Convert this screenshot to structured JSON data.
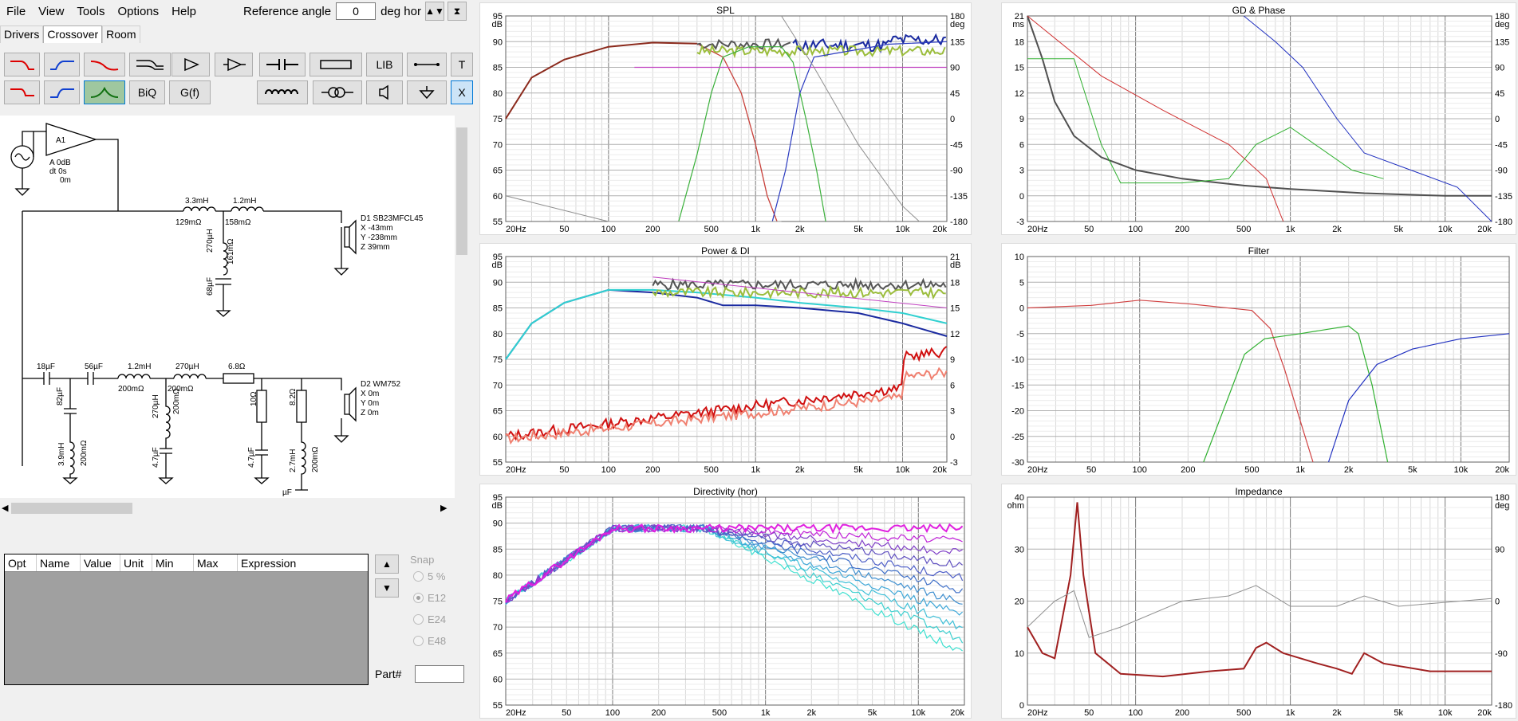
{
  "menu": {
    "items": [
      "File",
      "View",
      "Tools",
      "Options",
      "Help"
    ]
  },
  "toolbar_ref": {
    "label": "Reference angle",
    "value": "0",
    "unit": "deg hor"
  },
  "tabs": [
    "Drivers",
    "Crossover",
    "Room"
  ],
  "tools": {
    "lib": "LIB",
    "biq": "BiQ",
    "gf": "G(f)",
    "t": "T",
    "x": "X"
  },
  "schematic": {
    "amp": {
      "name": "A1",
      "gain": "A  0dB",
      "dt": "dt 0s",
      "dist": "0m"
    },
    "d1": {
      "name": "D1 SB23MFCL45",
      "x": "X -43mm",
      "y": "Y -238mm",
      "z": "Z 39mm"
    },
    "d2": {
      "name": "D2 WM752",
      "x": "X 0m",
      "y": "Y 0m",
      "z": "Z 0m"
    },
    "parts": [
      "3.3mH",
      "129mΩ",
      "1.2mH",
      "158mΩ",
      "270µH",
      "161mΩ",
      "68µF",
      "18µF",
      "56µF",
      "1.2mH",
      "200mΩ",
      "270µH",
      "200mΩ",
      "6.8Ω",
      "82µF",
      "3.9mH",
      "200mΩ",
      "270µH",
      "200mΩ",
      "4.7µF",
      "10Ω",
      "4.7µF",
      "8.2Ω",
      "2.7mH",
      "200mΩ",
      "µF"
    ]
  },
  "opt_table": {
    "headers": [
      "Opt",
      "Name",
      "Value",
      "Unit",
      "Min",
      "Max",
      "Expression"
    ]
  },
  "snap": {
    "label": "Snap",
    "options": [
      "5 %",
      "E12",
      "E24",
      "E48"
    ],
    "selected": "E12"
  },
  "part_label": "Part#",
  "charts": {
    "spl": {
      "title": "SPL",
      "yunit": "dB",
      "y2unit": "deg",
      "y": [
        "95",
        "90",
        "85",
        "80",
        "75",
        "70",
        "65",
        "60",
        "55"
      ],
      "y2": [
        "180",
        "135",
        "90",
        "45",
        "0",
        "-45",
        "-90",
        "-135",
        "-180"
      ]
    },
    "gd": {
      "title": "GD & Phase",
      "yunit": "ms",
      "y2unit": "deg",
      "y": [
        "21",
        "18",
        "15",
        "12",
        "9",
        "6",
        "3",
        "0",
        "-3"
      ],
      "y2": [
        "180",
        "135",
        "90",
        "45",
        "0",
        "-45",
        "-90",
        "-135",
        "-180"
      ]
    },
    "power": {
      "title": "Power & DI",
      "yunit": "dB",
      "y2unit": "dB",
      "y": [
        "95",
        "90",
        "85",
        "80",
        "75",
        "70",
        "65",
        "60",
        "55"
      ],
      "y2": [
        "21",
        "18",
        "15",
        "12",
        "9",
        "6",
        "3",
        "0",
        "-3"
      ]
    },
    "filter": {
      "title": "Filter",
      "y": [
        "10",
        "5",
        "0",
        "-5",
        "-10",
        "-15",
        "-20",
        "-25",
        "-30"
      ]
    },
    "dir": {
      "title": "Directivity (hor)",
      "yunit": "dB",
      "y": [
        "95",
        "90",
        "85",
        "80",
        "75",
        "70",
        "65",
        "60",
        "55"
      ]
    },
    "imp": {
      "title": "Impedance",
      "yunit": "ohm",
      "y2unit": "deg",
      "y": [
        "40",
        "30",
        "20",
        "10",
        "0"
      ],
      "y2": [
        "180",
        "90",
        "0",
        "-90",
        "-180"
      ]
    },
    "x": [
      "20Hz",
      "50",
      "100",
      "200",
      "500",
      "1k",
      "2k",
      "5k",
      "10k",
      "20k"
    ]
  }
}
